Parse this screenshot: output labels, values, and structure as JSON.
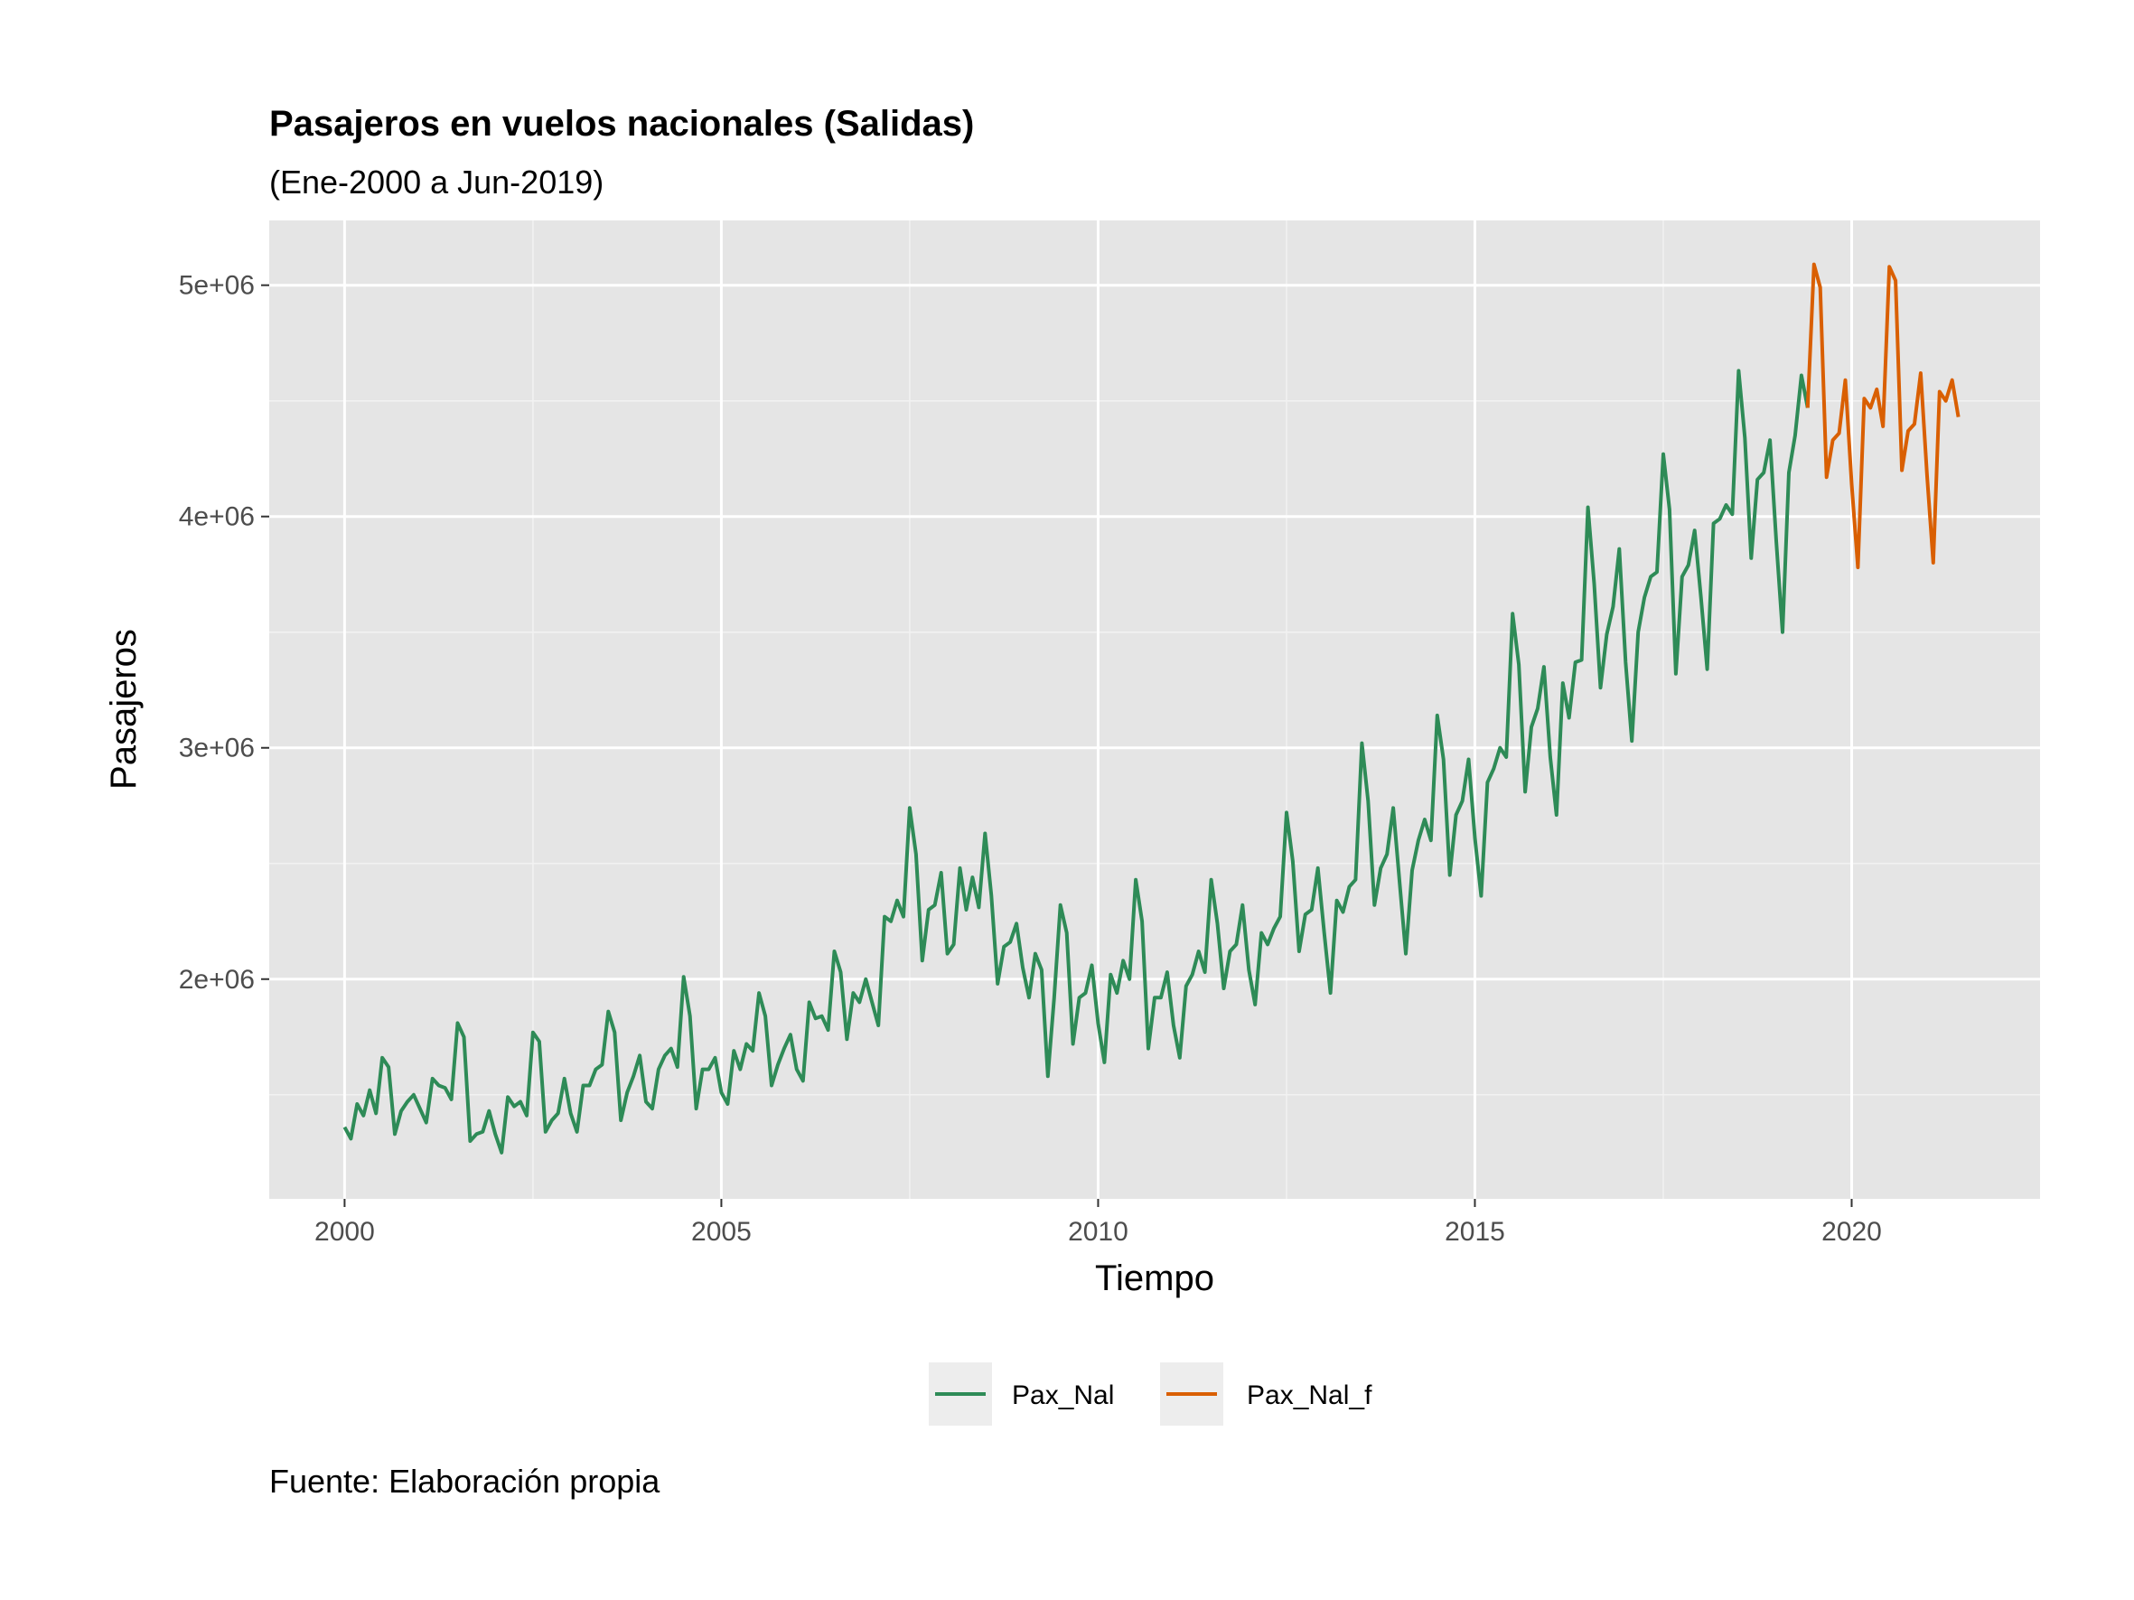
{
  "chart_data": {
    "type": "line",
    "title": "Pasajeros en vuelos nacionales (Salidas)",
    "subtitle": "(Ene-2000 a Jun-2019)",
    "caption": "Fuente: Elaboración propia",
    "xlabel": "Tiempo",
    "ylabel": "Pasajeros",
    "xlim": [
      1999.0,
      2022.5
    ],
    "ylim": [
      1050000,
      5280000
    ],
    "x_ticks": [
      2000,
      2005,
      2010,
      2015,
      2020
    ],
    "x_tick_labels": [
      "2000",
      "2005",
      "2010",
      "2015",
      "2020"
    ],
    "y_ticks": [
      2000000,
      3000000,
      4000000,
      5000000
    ],
    "y_tick_labels": [
      "2e+06",
      "3e+06",
      "4e+06",
      "5e+06"
    ],
    "grid": true,
    "legend_position": "bottom",
    "series": [
      {
        "name": "Pax_Nal",
        "color": "#2e8b57",
        "start": 2000.0,
        "step": 0.0833333,
        "values": [
          1360000,
          1310000,
          1460000,
          1410000,
          1520000,
          1420000,
          1660000,
          1620000,
          1330000,
          1430000,
          1470000,
          1500000,
          1440000,
          1380000,
          1570000,
          1540000,
          1530000,
          1480000,
          1810000,
          1750000,
          1300000,
          1330000,
          1340000,
          1430000,
          1330000,
          1250000,
          1490000,
          1450000,
          1470000,
          1410000,
          1770000,
          1730000,
          1340000,
          1390000,
          1420000,
          1570000,
          1420000,
          1340000,
          1540000,
          1540000,
          1610000,
          1630000,
          1860000,
          1770000,
          1390000,
          1510000,
          1580000,
          1670000,
          1470000,
          1440000,
          1610000,
          1670000,
          1700000,
          1620000,
          2010000,
          1840000,
          1440000,
          1610000,
          1610000,
          1660000,
          1510000,
          1460000,
          1690000,
          1610000,
          1720000,
          1690000,
          1940000,
          1840000,
          1540000,
          1630000,
          1700000,
          1760000,
          1610000,
          1560000,
          1900000,
          1830000,
          1840000,
          1780000,
          2120000,
          2030000,
          1740000,
          1940000,
          1900000,
          2000000,
          1900000,
          1800000,
          2270000,
          2250000,
          2340000,
          2270000,
          2740000,
          2540000,
          2080000,
          2300000,
          2320000,
          2460000,
          2110000,
          2150000,
          2480000,
          2300000,
          2440000,
          2310000,
          2630000,
          2360000,
          1980000,
          2140000,
          2160000,
          2240000,
          2050000,
          1920000,
          2110000,
          2040000,
          1580000,
          1920000,
          2320000,
          2200000,
          1720000,
          1920000,
          1940000,
          2060000,
          1810000,
          1640000,
          2020000,
          1940000,
          2080000,
          2000000,
          2430000,
          2250000,
          1700000,
          1920000,
          1920000,
          2030000,
          1800000,
          1660000,
          1970000,
          2020000,
          2120000,
          2030000,
          2430000,
          2240000,
          1960000,
          2120000,
          2150000,
          2320000,
          2040000,
          1890000,
          2200000,
          2150000,
          2220000,
          2270000,
          2720000,
          2510000,
          2120000,
          2280000,
          2300000,
          2480000,
          2200000,
          1940000,
          2340000,
          2290000,
          2400000,
          2430000,
          3020000,
          2770000,
          2320000,
          2480000,
          2540000,
          2740000,
          2420000,
          2110000,
          2470000,
          2600000,
          2690000,
          2600000,
          3140000,
          2950000,
          2450000,
          2710000,
          2770000,
          2950000,
          2610000,
          2360000,
          2850000,
          2910000,
          3000000,
          2960000,
          3580000,
          3360000,
          2810000,
          3090000,
          3170000,
          3350000,
          2960000,
          2710000,
          3280000,
          3130000,
          3370000,
          3380000,
          4040000,
          3710000,
          3260000,
          3490000,
          3610000,
          3860000,
          3370000,
          3030000,
          3500000,
          3650000,
          3740000,
          3760000,
          4270000,
          4030000,
          3320000,
          3740000,
          3790000,
          3940000,
          3650000,
          3340000,
          3970000,
          3990000,
          4050000,
          4010000,
          4630000,
          4340000,
          3820000,
          4160000,
          4190000,
          4330000,
          3890000,
          3500000,
          4190000,
          4350000,
          4610000,
          4470000
        ]
      },
      {
        "name": "Pax_Nal_f",
        "color": "#d95f02",
        "start": 2019.4167,
        "step": 0.0833333,
        "values": [
          4470000,
          5090000,
          4990000,
          4170000,
          4330000,
          4360000,
          4590000,
          4140000,
          3780000,
          4510000,
          4470000,
          4550000,
          4390000,
          5080000,
          5020000,
          4200000,
          4370000,
          4400000,
          4620000,
          4180000,
          3800000,
          4540000,
          4500000,
          4590000,
          4430000
        ]
      }
    ]
  }
}
